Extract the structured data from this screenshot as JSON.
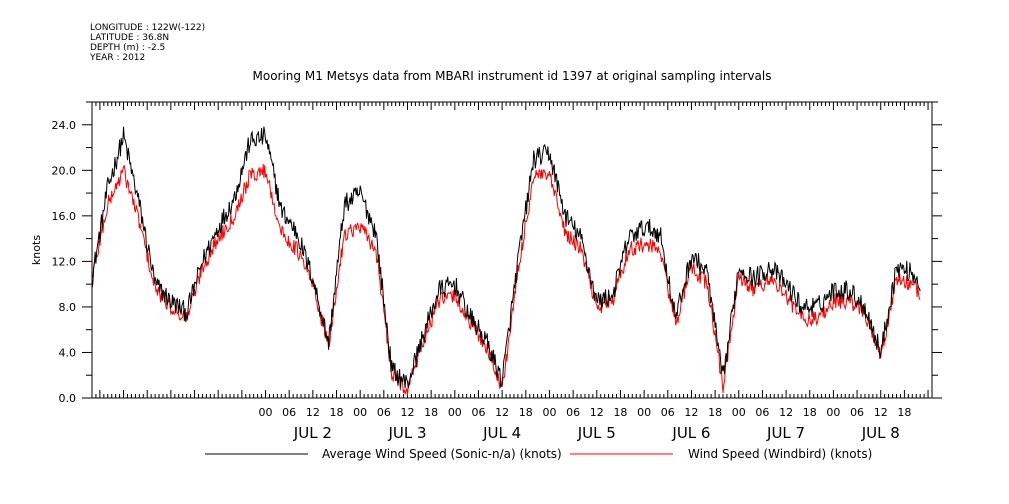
{
  "header": {
    "longitude": "LONGITUDE : 122W(-122)",
    "latitude": "LATITUDE : 36.8N",
    "depth": "DEPTH (m) : -2.5",
    "year": "YEAR : 2012"
  },
  "chart_data": {
    "type": "line",
    "title": "Mooring M1 Metsys data from MBARI instrument id 1397 at original sampling intervals",
    "ylabel": "knots",
    "xlabel": "",
    "x_units": "hours since 2012-07-01 00:00",
    "xlim": [
      -20,
      193
    ],
    "ylim": [
      0,
      26
    ],
    "y_ticks": [
      0,
      4,
      8,
      12,
      16,
      20,
      24
    ],
    "y_tick_labels": [
      "0.0",
      "4.0",
      "8.0",
      "12.0",
      "16.0",
      "20.0",
      "24.0"
    ],
    "x_ticks": [
      24,
      30,
      36,
      42,
      48,
      54,
      60,
      66,
      72,
      78,
      84,
      90,
      96,
      102,
      108,
      114,
      120,
      126,
      132,
      138,
      144,
      150,
      156,
      162,
      168,
      174,
      180,
      186
    ],
    "x_tick_labels": [
      "00",
      "06",
      "12",
      "18",
      "00",
      "06",
      "12",
      "18",
      "00",
      "06",
      "12",
      "18",
      "00",
      "06",
      "12",
      "18",
      "00",
      "06",
      "12",
      "18",
      "00",
      "06",
      "12",
      "18",
      "00",
      "06",
      "12",
      "18"
    ],
    "day_labels": [
      "JUL  2",
      "JUL  3",
      "JUL  4",
      "JUL  5",
      "JUL  6",
      "JUL  7",
      "JUL  8"
    ],
    "day_label_x": [
      36,
      60,
      84,
      108,
      132,
      156,
      180
    ],
    "legend_placement": "bottom",
    "series": [
      {
        "name": "Average Wind Speed (Sonic-n/a) (knots)",
        "color": "#000000",
        "x": [
          -20,
          -16,
          -12,
          -8,
          -4,
          0,
          4,
          8,
          12,
          16,
          20,
          24,
          28,
          32,
          36,
          40,
          44,
          48,
          52,
          56,
          60,
          64,
          68,
          72,
          76,
          80,
          84,
          88,
          92,
          96,
          100,
          104,
          108,
          112,
          116,
          120,
          124,
          128,
          132,
          136,
          140,
          144,
          148,
          152,
          156,
          160,
          164,
          168,
          172,
          176,
          180,
          184,
          188,
          190
        ],
        "y": [
          10.5,
          18.5,
          23.0,
          17.0,
          10.0,
          8.5,
          7.5,
          12.0,
          15.0,
          17.5,
          22.5,
          23.0,
          16.5,
          14.5,
          10.5,
          4.8,
          17.0,
          18.0,
          14.5,
          2.5,
          1.2,
          5.5,
          9.5,
          10.0,
          7.0,
          5.0,
          1.5,
          12.0,
          21.0,
          21.5,
          16.0,
          14.0,
          8.5,
          9.0,
          14.0,
          15.0,
          14.5,
          7.0,
          12.5,
          11.0,
          1.5,
          11.5,
          10.5,
          11.5,
          10.0,
          8.0,
          8.0,
          9.5,
          9.5,
          8.0,
          4.0,
          11.5,
          11.0,
          10.0
        ],
        "noise": 0.9
      },
      {
        "name": "Wind Speed (Windbird) (knots)",
        "color": "#ff0000",
        "x": [
          -20,
          -16,
          -12,
          -8,
          -4,
          0,
          4,
          8,
          12,
          16,
          20,
          24,
          28,
          32,
          36,
          40,
          44,
          48,
          52,
          56,
          60,
          64,
          68,
          72,
          76,
          80,
          84,
          88,
          92,
          96,
          100,
          104,
          108,
          112,
          116,
          120,
          124,
          128,
          132,
          136,
          140,
          144,
          148,
          152,
          156,
          160,
          164,
          168,
          172,
          176,
          180,
          184,
          188,
          190
        ],
        "y": [
          10.5,
          17.0,
          20.0,
          15.5,
          9.5,
          8.0,
          7.0,
          11.5,
          14.0,
          16.0,
          19.5,
          20.0,
          14.5,
          13.0,
          10.0,
          4.5,
          14.5,
          15.0,
          13.0,
          2.0,
          0.8,
          5.0,
          8.5,
          9.0,
          6.5,
          4.5,
          0.8,
          11.0,
          19.5,
          19.5,
          14.5,
          13.0,
          8.0,
          8.5,
          13.0,
          13.5,
          13.0,
          6.5,
          11.5,
          10.0,
          1.0,
          10.5,
          9.5,
          10.5,
          9.0,
          7.0,
          7.0,
          8.5,
          8.5,
          7.5,
          3.5,
          10.5,
          10.0,
          9.0
        ],
        "noise": 0.7
      }
    ]
  },
  "legend": {
    "items": [
      "Average Wind Speed (Sonic-n/a) (knots)",
      "Wind Speed (Windbird) (knots)"
    ]
  }
}
